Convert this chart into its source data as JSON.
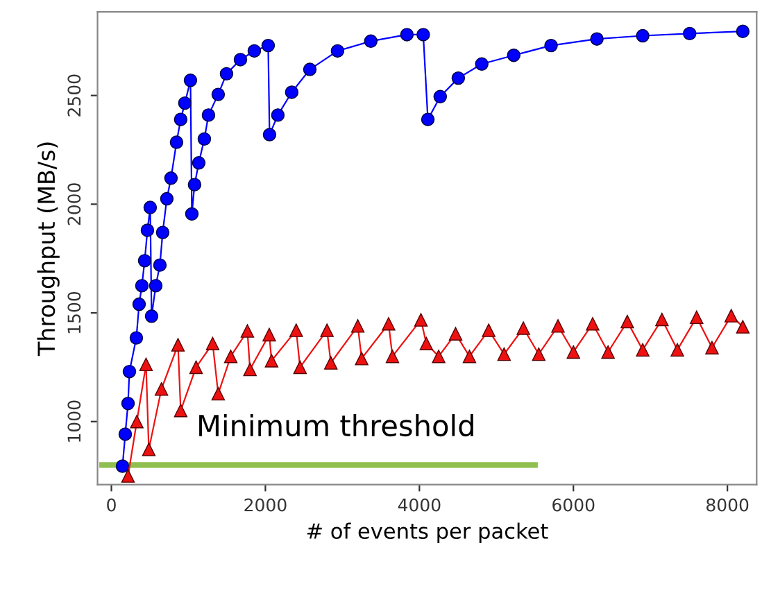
{
  "chart_data": {
    "type": "line",
    "xlabel": "# of events per packet",
    "ylabel": "Throughput (MB/s)",
    "xlim": [
      -180,
      8380
    ],
    "ylim": [
      710,
      2885
    ],
    "xticks": [
      0,
      2000,
      4000,
      6000,
      8000
    ],
    "yticks": [
      1000,
      1500,
      2000,
      2500
    ],
    "grid": false,
    "legend": false,
    "series": [
      {
        "color": "#8fbf4f",
        "x": [
          -120,
          5500
        ],
        "values": [
          800,
          800
        ],
        "marker": "none"
      },
      {
        "color": "#0000ff",
        "marker": "circle",
        "x": [
          144,
          180,
          216,
          234,
          324,
          360,
          396,
          432,
          468,
          504,
          522,
          576,
          630,
          666,
          720,
          774,
          846,
          900,
          954,
          1027,
          1045,
          1080,
          1135,
          1207,
          1261,
          1387,
          1495,
          1676,
          1856,
          2036,
          2054,
          2162,
          2342,
          2577,
          2937,
          3369,
          3838,
          4050,
          4110,
          4270,
          4505,
          4810,
          5225,
          5710,
          6305,
          6900,
          7510,
          8200
        ],
        "values": [
          795,
          942,
          1083,
          1230,
          1385,
          1540,
          1625,
          1740,
          1880,
          1985,
          1485,
          1625,
          1720,
          1870,
          2025,
          2120,
          2285,
          2390,
          2465,
          2570,
          1955,
          2090,
          2190,
          2300,
          2410,
          2505,
          2600,
          2665,
          2705,
          2730,
          2320,
          2410,
          2515,
          2620,
          2705,
          2750,
          2780,
          2780,
          2390,
          2495,
          2580,
          2645,
          2685,
          2730,
          2760,
          2775,
          2785,
          2795
        ]
      },
      {
        "color": "#ee1111",
        "marker": "triangle",
        "x": [
          216,
          330,
          450,
          486,
          650,
          865,
          900,
          1100,
          1315,
          1387,
          1550,
          1766,
          1800,
          2050,
          2080,
          2400,
          2450,
          2800,
          2850,
          3200,
          3250,
          3600,
          3650,
          4020,
          4090,
          4250,
          4470,
          4650,
          4900,
          5100,
          5350,
          5550,
          5800,
          6000,
          6250,
          6450,
          6700,
          6900,
          7150,
          7350,
          7600,
          7800,
          8050,
          8200
        ],
        "values": [
          750,
          1000,
          1263,
          872,
          1150,
          1353,
          1051,
          1250,
          1359,
          1128,
          1300,
          1417,
          1240,
          1400,
          1280,
          1420,
          1250,
          1420,
          1270,
          1440,
          1290,
          1450,
          1300,
          1468,
          1359,
          1300,
          1404,
          1300,
          1420,
          1310,
          1430,
          1310,
          1440,
          1320,
          1450,
          1320,
          1460,
          1330,
          1470,
          1330,
          1480,
          1340,
          1487,
          1436
        ]
      }
    ],
    "annotations": [
      "Minimum threshold"
    ]
  }
}
